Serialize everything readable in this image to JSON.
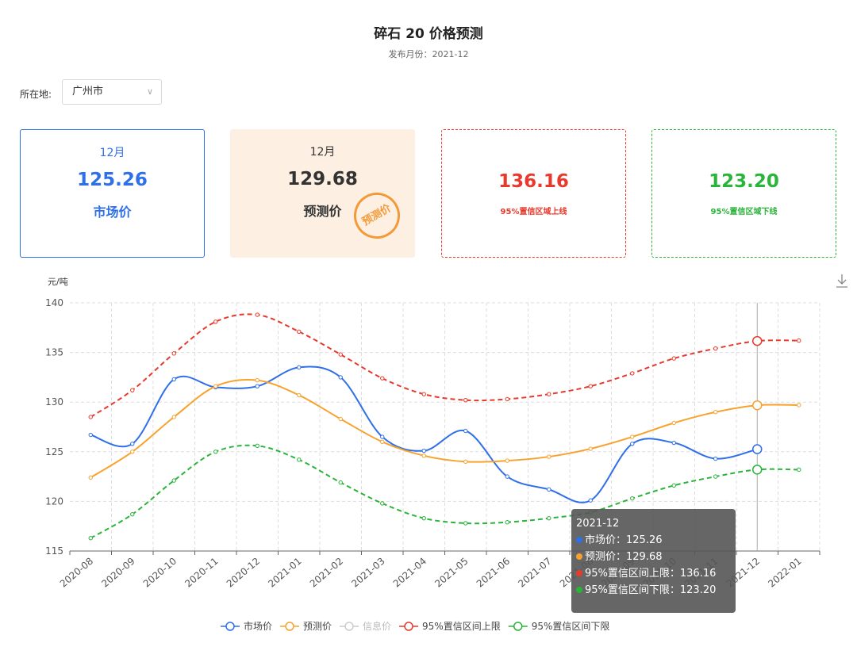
{
  "header": {
    "title": "碎石 20 价格预测",
    "subtitle": "发布月份：2021-12"
  },
  "filter": {
    "label": "所在地:",
    "value": "广州市"
  },
  "cards": [
    {
      "month": "12月",
      "value": "125.26",
      "label": "市场价"
    },
    {
      "month": "12月",
      "value": "129.68",
      "label": "预测价",
      "stamp": "预测价"
    },
    {
      "value": "136.16",
      "label": "95%置信区域上线"
    },
    {
      "value": "123.20",
      "label": "95%置信区域下线"
    }
  ],
  "chart_data": {
    "type": "line",
    "y_unit": "元/吨",
    "categories": [
      "2020-08",
      "2020-09",
      "2020-10",
      "2020-11",
      "2020-12",
      "2021-01",
      "2021-02",
      "2021-03",
      "2021-04",
      "2021-05",
      "2021-06",
      "2021-07",
      "2021-08",
      "2021-09",
      "2021-10",
      "2021-11",
      "2021-12",
      "2022-01"
    ],
    "series": [
      {
        "name": "市场价",
        "color": "#2f6fe8",
        "line_style": "solid",
        "values": [
          126.7,
          125.8,
          132.3,
          131.5,
          131.6,
          133.5,
          132.5,
          126.5,
          125.1,
          127.1,
          122.5,
          121.2,
          120.1,
          125.8,
          125.9,
          124.3,
          125.26,
          null
        ]
      },
      {
        "name": "预测价",
        "color": "#f7a22e",
        "line_style": "solid",
        "values": [
          122.4,
          125.0,
          128.5,
          131.6,
          132.2,
          130.7,
          128.3,
          126.0,
          124.6,
          124.0,
          124.1,
          124.5,
          125.3,
          126.5,
          127.9,
          129.0,
          129.68,
          129.7
        ]
      },
      {
        "name": "信息价",
        "color": "#cccccc",
        "line_style": "solid",
        "values": [
          null,
          null,
          null,
          null,
          null,
          null,
          null,
          null,
          null,
          null,
          null,
          null,
          null,
          null,
          null,
          null,
          null,
          null
        ]
      },
      {
        "name": "95%置信区间上限",
        "color": "#e8392c",
        "line_style": "dashed",
        "values": [
          128.5,
          131.2,
          134.9,
          138.1,
          138.8,
          137.1,
          134.8,
          132.4,
          130.8,
          130.2,
          130.3,
          130.8,
          131.6,
          132.9,
          134.4,
          135.4,
          136.16,
          136.2
        ]
      },
      {
        "name": "95%置信区间下限",
        "color": "#29b43a",
        "line_style": "dashed",
        "values": [
          116.3,
          118.7,
          122.1,
          125.0,
          125.6,
          124.2,
          121.9,
          119.8,
          118.3,
          117.8,
          117.9,
          118.3,
          118.9,
          120.3,
          121.6,
          122.5,
          123.2,
          123.2
        ]
      }
    ],
    "ylim": [
      115,
      140
    ],
    "yticks": [
      115,
      120,
      125,
      130,
      135,
      140
    ],
    "grid": true,
    "smooth": true,
    "legend": "bottom",
    "tooltip": {
      "title": "2021-12",
      "index": 16,
      "rows": [
        "市场价：125.26",
        "预测价：129.68",
        "95%置信区间上限：136.16",
        "95%置信区间下限：123.20"
      ],
      "colors": [
        "#2f6fe8",
        "#f7a22e",
        "#e8392c",
        "#29b43a"
      ]
    }
  }
}
